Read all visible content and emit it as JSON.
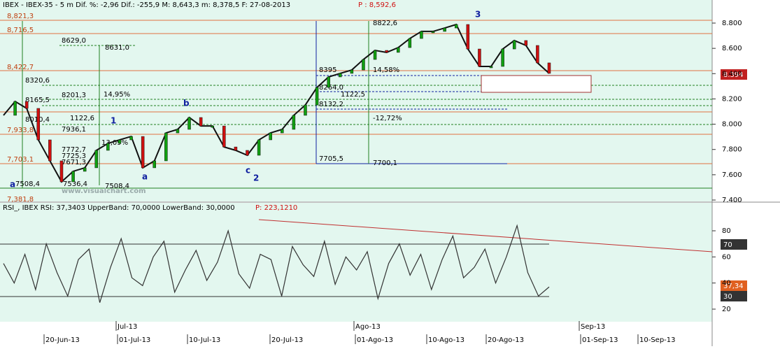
{
  "price_panel": {
    "header": "IBEX - IBEX-35 -  5 m Dif. %: -2,96 Dif.: -255,9 M: 8,643,3 m: 8,378,5 F: 27-08-2013",
    "header_p": "P : 8,592,6",
    "levels": [
      "8,821,3",
      "8,716,5",
      "8,422,7",
      "7,933,8",
      "7,703,1",
      "7,381,8"
    ],
    "yticks": [
      {
        "value": 8800,
        "label": "8.800"
      },
      {
        "value": 8600,
        "label": "8.600"
      },
      {
        "value": 8400,
        "label": "8.400"
      },
      {
        "value": 8200,
        "label": "8.200"
      },
      {
        "value": 8000,
        "label": "8.000"
      },
      {
        "value": 7800,
        "label": "7.800"
      },
      {
        "value": 7600,
        "label": "7.600"
      },
      {
        "value": 7400,
        "label": "7.400"
      }
    ],
    "last_price": "8.394",
    "watermark": "www.visualchart.com",
    "annotations": [
      "8629,0",
      "8631,0",
      "8320,6",
      "8201,3",
      "14,95%",
      "8165,5",
      "8010,4",
      "1122,6",
      "7936,1",
      "7772,7",
      "7725,3",
      "7671,3",
      "7508,4",
      "7536,4",
      "7508,4",
      "13,09%",
      "8395",
      "14,58%",
      "8264,0",
      "1122,5",
      "8132,2",
      "-12,72%",
      "7705,5",
      "8822,6",
      "7700,1"
    ],
    "waves": [
      "1",
      "2",
      "3",
      "a",
      "b",
      "c",
      "a"
    ],
    "close": [
      8070,
      8180,
      8125,
      7876,
      7710,
      7544,
      7627,
      7655,
      7793,
      7848,
      7876,
      7903,
      7655,
      7710,
      7931,
      7959,
      8053,
      7986,
      7986,
      7820,
      7793,
      7754,
      7876,
      7931,
      7959,
      8070,
      8152,
      8291,
      8374,
      8402,
      8429,
      8512,
      8584,
      8568,
      8606,
      8678,
      8734,
      8734,
      8761,
      8789,
      8595,
      8457,
      8457,
      8595,
      8662,
      8623,
      8485,
      8402
    ]
  },
  "rsi_panel": {
    "header": "RSI_, IBEX RSI: 37,3403 UpperBand: 70,0000 LowerBand: 30,0000",
    "header_p": "P: 223,1210",
    "yticks": [
      80,
      60,
      40,
      20
    ],
    "upper_label": "70",
    "last_label": "37,34",
    "lower_label": "30",
    "values": [
      55,
      40,
      62,
      35,
      70,
      48,
      30,
      58,
      66,
      25,
      52,
      74,
      44,
      38,
      60,
      72,
      33,
      50,
      65,
      42,
      56,
      80,
      47,
      36,
      62,
      58,
      30,
      68,
      54,
      45,
      72,
      39,
      60,
      50,
      64,
      28,
      55,
      70,
      46,
      62,
      35,
      58,
      76,
      44,
      52,
      66,
      40,
      60,
      84,
      48,
      30,
      37
    ]
  },
  "dates": [
    "20-Jun-13",
    "Jul-13",
    "01-Jul-13",
    "10-Jul-13",
    "20-Jul-13",
    "Ago-13",
    "01-Ago-13",
    "10-Ago-13",
    "20-Ago-13",
    "Sep-13",
    "01-Sep-13",
    "10-Sep-13"
  ]
}
